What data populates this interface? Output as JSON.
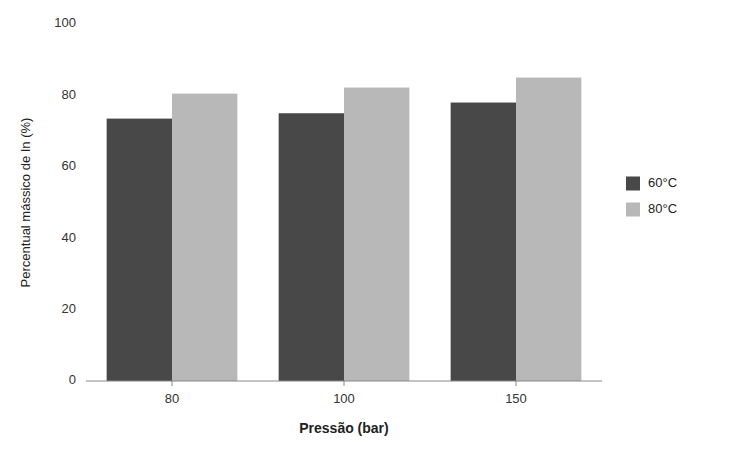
{
  "chart_data": {
    "type": "bar",
    "categories": [
      "80",
      "100",
      "150"
    ],
    "series": [
      {
        "name": "60°C",
        "color": "#484848",
        "values": [
          73.5,
          75.0,
          78.0
        ]
      },
      {
        "name": "80°C",
        "color": "#b8b8b8",
        "values": [
          80.5,
          82.2,
          85.0
        ]
      }
    ],
    "xlabel": "Pressão (bar)",
    "ylabel": "Percentual mássico de In (%)",
    "ylim": [
      0,
      100
    ],
    "yticks": [
      0,
      20,
      40,
      60,
      80,
      100
    ],
    "grid": false,
    "legend": "right"
  }
}
